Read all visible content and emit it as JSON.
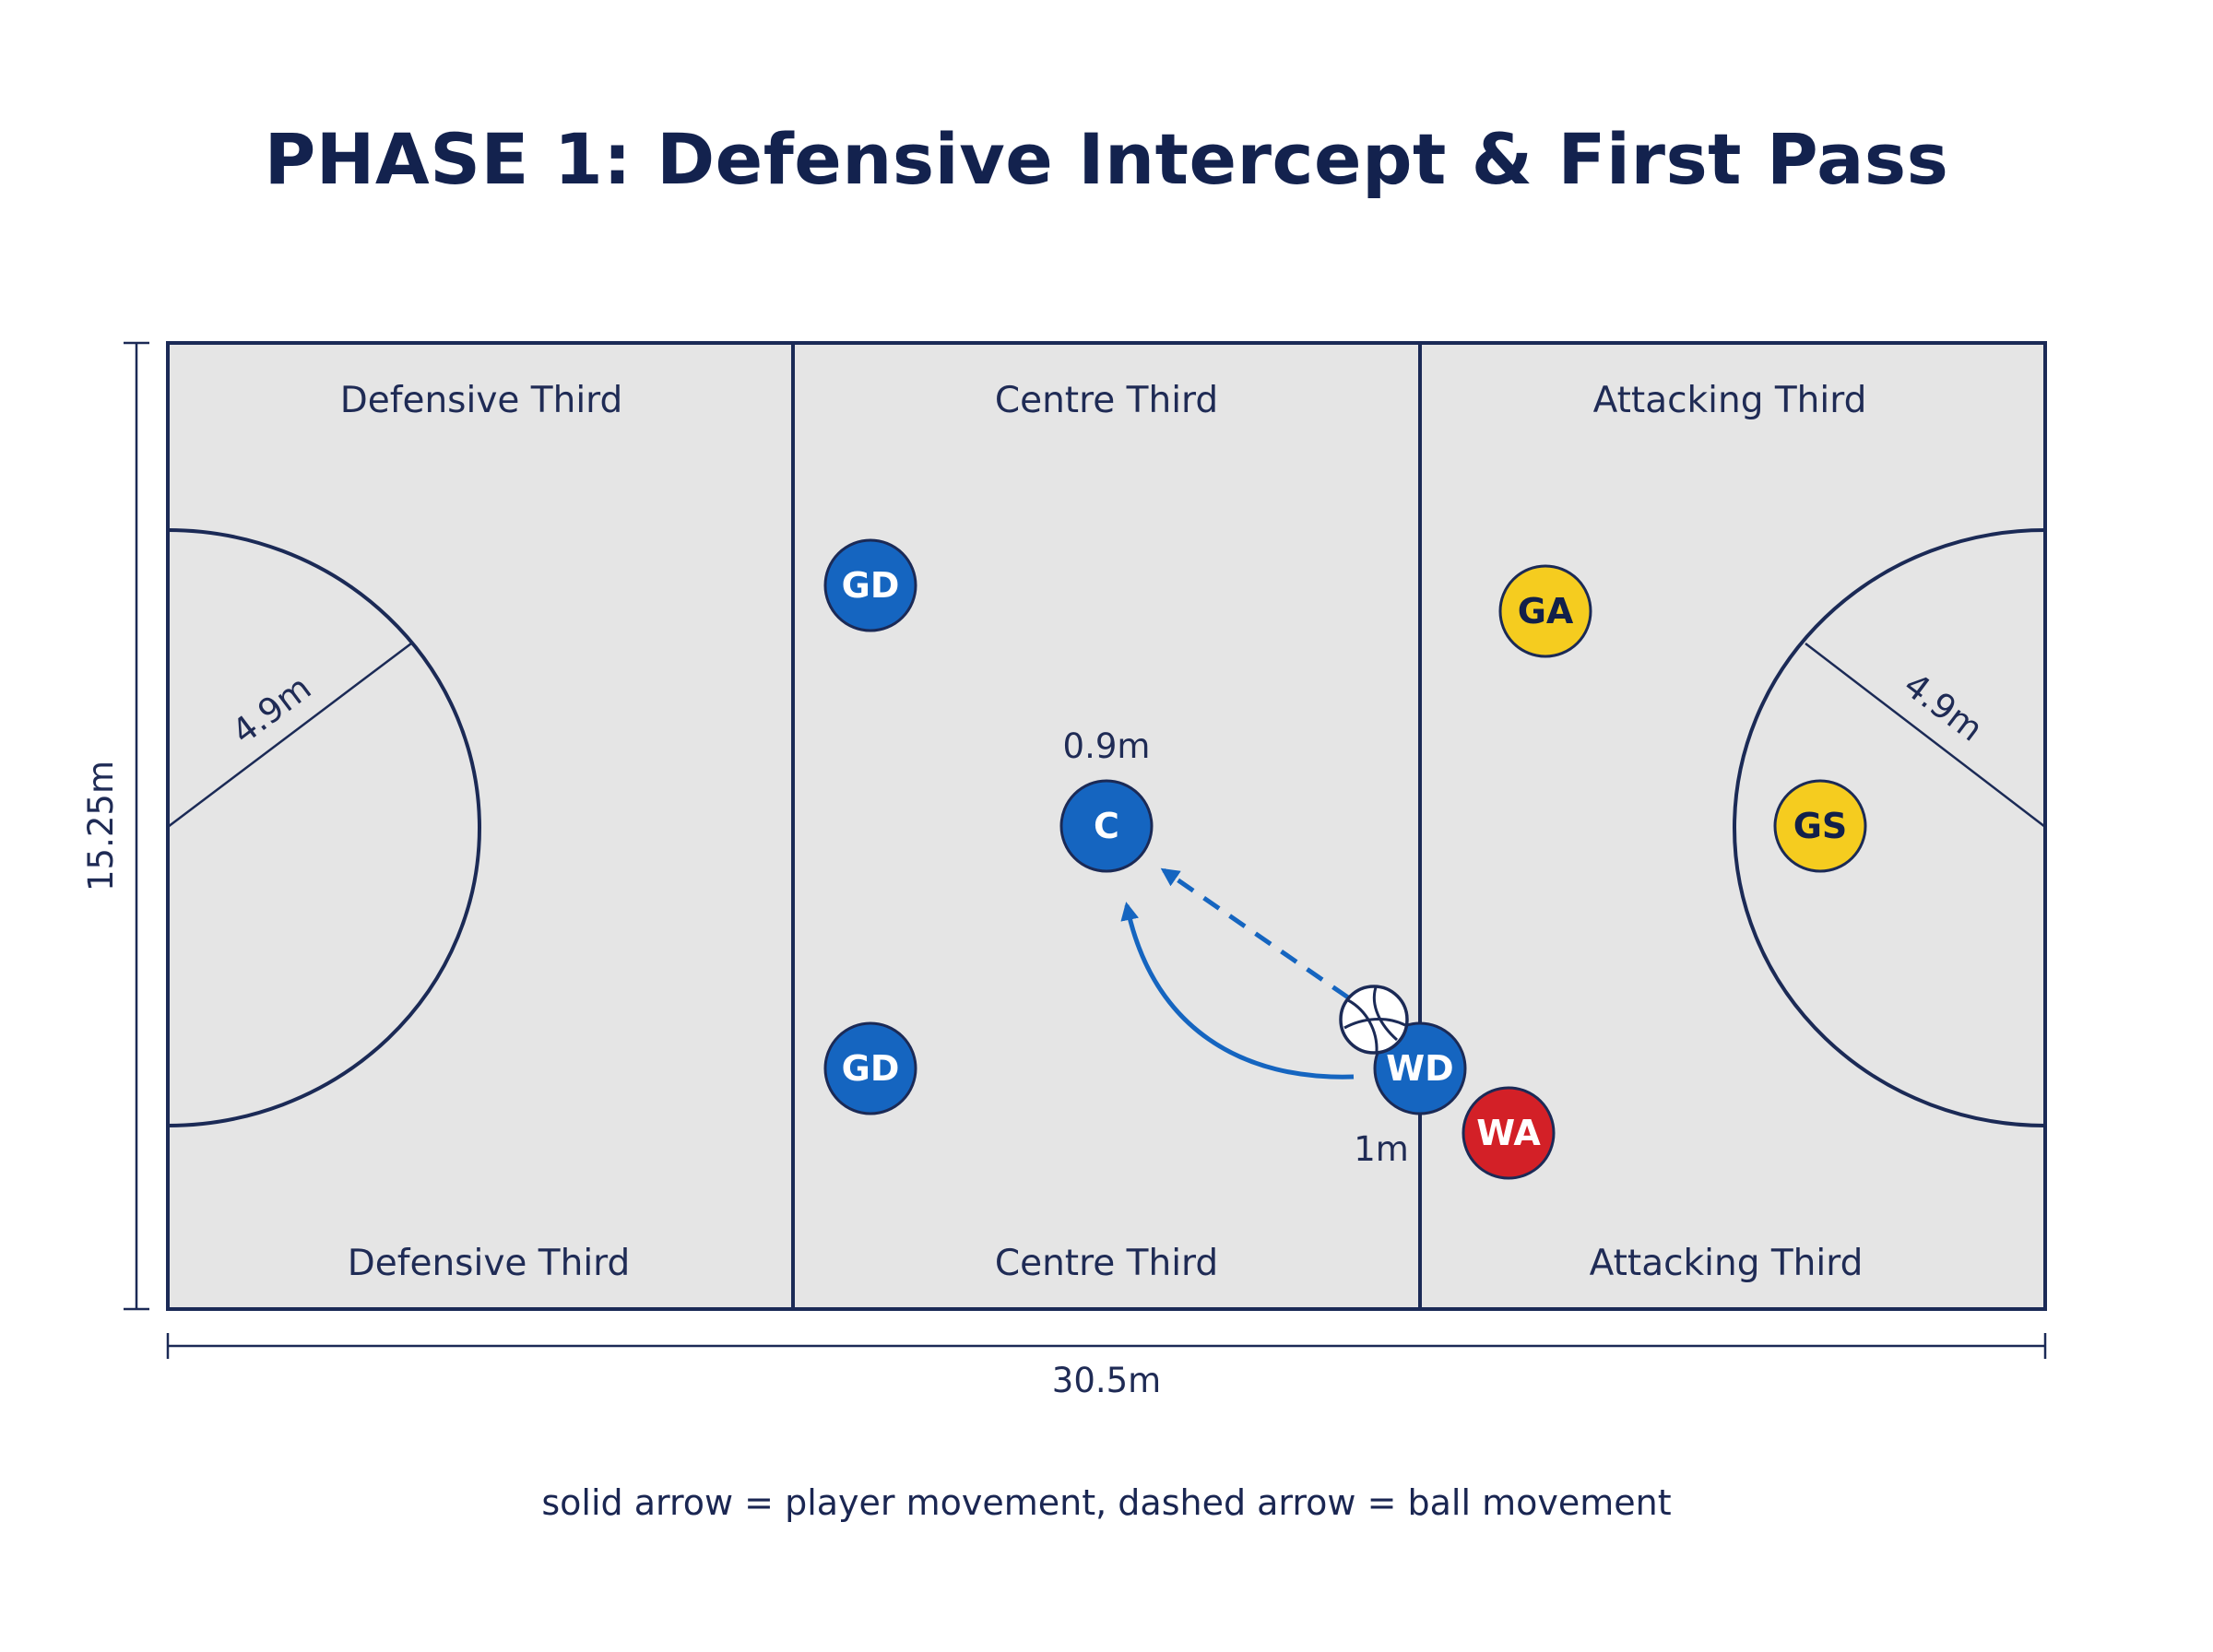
{
  "title": "PHASE 1: Defensive Intercept & First Pass",
  "court": {
    "length_label": "30.5m",
    "width_label": "15.25m",
    "circle_radius_left": "4.9m",
    "circle_radius_right": "4.9m",
    "thirds_top": [
      "Defensive Third",
      "Centre Third",
      "Attacking Third"
    ],
    "thirds_bottom": [
      "Defensive Third",
      "Centre Third",
      "Attacking Third"
    ]
  },
  "annotations": {
    "centre_distance": "0.9m",
    "wd_distance": "1m"
  },
  "players": [
    {
      "id": "gd-top",
      "label": "GD",
      "team": "blue"
    },
    {
      "id": "gd-bottom",
      "label": "GD",
      "team": "blue"
    },
    {
      "id": "c",
      "label": "C",
      "team": "blue"
    },
    {
      "id": "wd",
      "label": "WD",
      "team": "blue"
    },
    {
      "id": "ga",
      "label": "GA",
      "team": "yellow"
    },
    {
      "id": "gs",
      "label": "GS",
      "team": "yellow"
    },
    {
      "id": "wa",
      "label": "WA",
      "team": "red"
    }
  ],
  "colors": {
    "blue": "#1565c0",
    "yellow": "#f5cc1f",
    "red": "#d32027",
    "court": "#e5e5e5",
    "lines": "#1b2a56"
  },
  "legend": "solid arrow = player movement, dashed arrow = ball movement"
}
